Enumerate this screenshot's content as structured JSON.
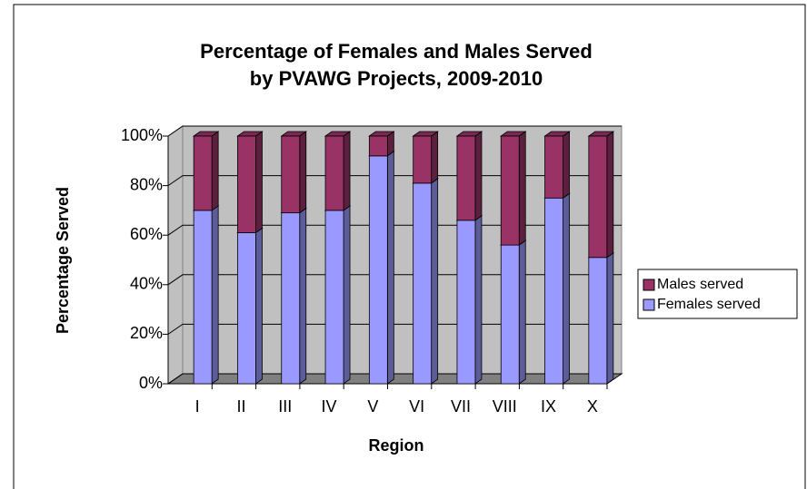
{
  "chart_data": {
    "type": "bar3d_stacked_percent",
    "title": [
      "Percentage of Females and Males Served",
      "by PVAWG Projects, 2009-2010"
    ],
    "x_label": "Region",
    "y_label": "Percentage Served",
    "categories": [
      "I",
      "II",
      "III",
      "IV",
      "V",
      "VI",
      "VII",
      "VIII",
      "IX",
      "X"
    ],
    "series": [
      {
        "name": "Females served",
        "color": "#9999ff",
        "values": [
          70,
          61,
          69,
          70,
          92,
          81,
          66,
          56,
          75,
          51
        ]
      },
      {
        "name": "Males served",
        "color": "#993366",
        "values": [
          30,
          39,
          31,
          30,
          8,
          19,
          34,
          44,
          25,
          49
        ]
      }
    ],
    "ylim": [
      0,
      100
    ],
    "yticks": [
      {
        "value": 0,
        "label": "0%"
      },
      {
        "value": 20,
        "label": "20%"
      },
      {
        "value": 40,
        "label": "40%"
      },
      {
        "value": 60,
        "label": "60%"
      },
      {
        "value": 80,
        "label": "80%"
      },
      {
        "value": 100,
        "label": "100%"
      }
    ],
    "grid": true,
    "legend": "right"
  }
}
